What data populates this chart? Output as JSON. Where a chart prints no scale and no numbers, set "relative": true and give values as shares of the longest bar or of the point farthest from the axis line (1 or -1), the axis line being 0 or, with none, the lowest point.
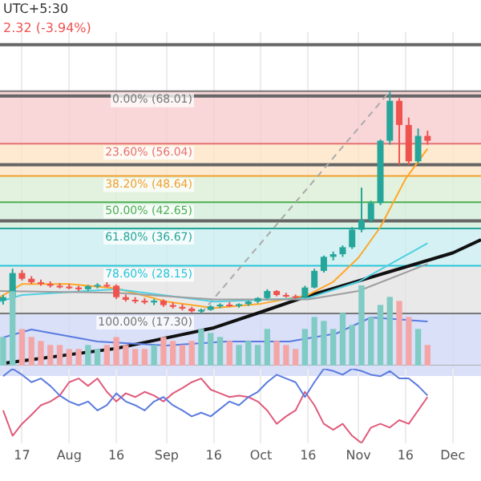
{
  "chart_data": [
    {
      "type": "candlestick",
      "annotations": [
        "UTC+5:30",
        "2.32 (-3.94%)"
      ],
      "legend": false,
      "grid": "x",
      "tick_labels": false,
      "xlim": [
        "--07-10",
        "--12-10"
      ],
      "ylim": [
        1,
        81.5
      ],
      "xticks": [
        {
          "value": "--07-17",
          "label": null
        },
        {
          "value": "--08-01",
          "label": null
        },
        {
          "value": "--08-16",
          "label": null
        },
        {
          "value": "--09-01",
          "label": null
        },
        {
          "value": "--09-16",
          "label": null
        },
        {
          "value": "--10-01",
          "label": null
        },
        {
          "value": "--10-16",
          "label": null
        },
        {
          "value": "--11-01",
          "label": null
        },
        {
          "value": "--11-16",
          "label": null
        },
        {
          "value": "--12-01",
          "label": null
        }
      ],
      "x": [
        "--07-11",
        "--07-14",
        "--07-17",
        "--07-20",
        "--07-23",
        "--07-26",
        "--07-29",
        "--08-01",
        "--08-04",
        "--08-07",
        "--08-10",
        "--08-13",
        "--08-16",
        "--08-19",
        "--08-22",
        "--08-25",
        "--08-28",
        "--08-31",
        "--09-03",
        "--09-06",
        "--09-09",
        "--09-12",
        "--09-15",
        "--09-18",
        "--09-21",
        "--09-24",
        "--09-27",
        "--09-30",
        "--10-03",
        "--10-06",
        "--10-09",
        "--10-12",
        "--10-15",
        "--10-18",
        "--10-21",
        "--10-24",
        "--10-27",
        "--10-30",
        "--11-02",
        "--11-05",
        "--11-08",
        "--11-11",
        "--11-14",
        "--11-17",
        "--11-20",
        "--11-23"
      ],
      "ohlc": [
        [
          20.2,
          21.5,
          19.3,
          21.0
        ],
        [
          21.0,
          27.5,
          20.5,
          26.5
        ],
        [
          26.5,
          27.2,
          24.8,
          25.2
        ],
        [
          25.2,
          25.8,
          24.0,
          24.4
        ],
        [
          24.4,
          25.0,
          23.6,
          24.0
        ],
        [
          24.0,
          24.6,
          23.2,
          23.6
        ],
        [
          23.6,
          24.2,
          23.0,
          23.4
        ],
        [
          23.4,
          24.0,
          22.8,
          23.2
        ],
        [
          23.2,
          23.6,
          22.4,
          22.8
        ],
        [
          22.8,
          23.8,
          22.5,
          23.5
        ],
        [
          23.5,
          24.2,
          23.0,
          23.8
        ],
        [
          23.8,
          24.4,
          23.2,
          23.6
        ],
        [
          23.6,
          23.9,
          20.6,
          21.0
        ],
        [
          21.0,
          21.6,
          20.0,
          20.4
        ],
        [
          20.4,
          21.0,
          19.6,
          20.2
        ],
        [
          20.2,
          20.8,
          19.4,
          19.8
        ],
        [
          19.8,
          20.6,
          19.2,
          20.2
        ],
        [
          20.2,
          20.5,
          18.8,
          19.2
        ],
        [
          19.2,
          19.8,
          18.4,
          18.8
        ],
        [
          18.8,
          19.4,
          18.0,
          18.4
        ],
        [
          18.4,
          18.8,
          17.5,
          17.8
        ],
        [
          17.8,
          18.4,
          17.3,
          18.1
        ],
        [
          18.1,
          19.2,
          17.9,
          18.9
        ],
        [
          18.9,
          19.6,
          18.5,
          19.3
        ],
        [
          19.3,
          19.9,
          18.8,
          19.0
        ],
        [
          19.0,
          19.6,
          18.6,
          19.4
        ],
        [
          19.4,
          20.2,
          19.0,
          20.0
        ],
        [
          20.0,
          21.0,
          19.6,
          20.8
        ],
        [
          20.8,
          22.8,
          20.5,
          22.4
        ],
        [
          22.4,
          22.6,
          21.2,
          21.5
        ],
        [
          21.5,
          22.0,
          20.9,
          21.2
        ],
        [
          21.2,
          21.6,
          20.6,
          21.0
        ],
        [
          21.0,
          23.6,
          20.8,
          23.2
        ],
        [
          23.2,
          27.5,
          23.0,
          27.0
        ],
        [
          27.0,
          30.5,
          26.6,
          30.2
        ],
        [
          30.2,
          31.4,
          29.4,
          30.8
        ],
        [
          30.8,
          32.8,
          30.2,
          32.4
        ],
        [
          32.4,
          37.0,
          32.0,
          36.4
        ],
        [
          36.4,
          46.0,
          35.8,
          38.6
        ],
        [
          38.6,
          43.0,
          38.0,
          42.5
        ],
        [
          42.5,
          57.0,
          42.0,
          56.7
        ],
        [
          56.7,
          68.01,
          55.8,
          65.8
        ],
        [
          65.8,
          66.4,
          51.2,
          60.3
        ],
        [
          60.3,
          62.0,
          51.2,
          52.0
        ],
        [
          52.0,
          59.5,
          51.6,
          57.8
        ],
        [
          57.8,
          59.0,
          55.8,
          56.7
        ]
      ],
      "series": [
        {
          "type": "line",
          "color": "#9e9e9e",
          "x": [
            "--07-10",
            "--08-16",
            "--09-16",
            "--10-16",
            "--11-01",
            "--11-23"
          ],
          "values": [
            22.4,
            22.0,
            20.5,
            20.5,
            22.4,
            28.6
          ]
        },
        {
          "type": "line",
          "color": "#4dd0e1",
          "x": [
            "--07-10",
            "--07-17",
            "--08-16",
            "--09-16",
            "--10-16",
            "--11-01",
            "--11-23"
          ],
          "values": [
            20.0,
            21.5,
            22.8,
            20.0,
            20.8,
            24.5,
            33.3
          ]
        },
        {
          "type": "line",
          "color": "#ffa726",
          "x": [
            "--07-10",
            "--07-17",
            "--08-01",
            "--08-16",
            "--09-01",
            "--09-16",
            "--10-01",
            "--10-16",
            "--10-24",
            "--11-01",
            "--11-08",
            "--11-16",
            "--11-23"
          ],
          "values": [
            21.0,
            24.0,
            24.0,
            23.0,
            20.0,
            18.5,
            19.5,
            21.5,
            24.5,
            30.0,
            37.0,
            48.0,
            54.9
          ]
        },
        {
          "type": "line",
          "color": "#111111",
          "x": [
            "--07-12",
            "--08-16",
            "--09-16",
            "--10-01",
            "--10-16",
            "--11-16",
            "--12-01",
            "--12-10"
          ],
          "values": [
            6.0,
            9.3,
            14.0,
            17.6,
            21.3,
            27.9,
            31.1,
            34.1
          ]
        },
        {
          "type": "line",
          "color": "#aaaaaa",
          "line_style": "dashed",
          "x": [
            "--09-12",
            "--11-11"
          ],
          "values": [
            17.3,
            68.0
          ]
        }
      ],
      "bands": [
        {
          "axis": "y",
          "from": 56.04,
          "to": 68.01,
          "color": "#f8cdd0"
        },
        {
          "axis": "y",
          "from": 48.64,
          "to": 56.04,
          "color": "#fde5c4"
        },
        {
          "axis": "y",
          "from": 42.65,
          "to": 48.64,
          "color": "#dcefd6"
        },
        {
          "axis": "y",
          "from": 36.67,
          "to": 42.65,
          "color": "#d3eddb"
        },
        {
          "axis": "y",
          "from": 28.15,
          "to": 36.67,
          "color": "#caedf0"
        },
        {
          "axis": "y",
          "from": 17.3,
          "to": 28.15,
          "color": "#e4e4e4"
        },
        {
          "axis": "y",
          "from": 3,
          "to": 17.3,
          "color": "#d0d8f6"
        }
      ],
      "ref_lines": [
        {
          "axis": "y",
          "value": 78.6,
          "color": "#666666"
        },
        {
          "axis": "y",
          "value": 66.9,
          "color": "#666666"
        },
        {
          "axis": "y",
          "value": 51.2,
          "color": "#666666"
        },
        {
          "axis": "y",
          "value": 38.4,
          "color": "#666666"
        },
        {
          "axis": "y",
          "value": 68.01,
          "label": "0.00% (68.01)",
          "color": "#787878"
        },
        {
          "axis": "y",
          "value": 56.04,
          "label": "23.60% (56.04)",
          "color": "#e57373"
        },
        {
          "axis": "y",
          "value": 48.64,
          "label": "38.20% (48.64)",
          "color": "#f0a030"
        },
        {
          "axis": "y",
          "value": 42.65,
          "label": "50.00% (42.65)",
          "color": "#4caf50"
        },
        {
          "axis": "y",
          "value": 36.67,
          "label": "61.80% (36.67)",
          "color": "#26a69a"
        },
        {
          "axis": "y",
          "value": 28.15,
          "label": "78.60% (28.15)",
          "color": "#26c6da"
        },
        {
          "axis": "y",
          "value": 17.3,
          "label": "100.00% (17.30)",
          "color": "#787878"
        }
      ]
    },
    {
      "type": "bar",
      "relative": true,
      "legend": false,
      "tick_labels": false,
      "xlim": [
        "--07-10",
        "--12-10"
      ],
      "x": [
        "--07-11",
        "--07-14",
        "--07-17",
        "--07-20",
        "--07-23",
        "--07-26",
        "--07-29",
        "--08-01",
        "--08-04",
        "--08-07",
        "--08-10",
        "--08-13",
        "--08-16",
        "--08-19",
        "--08-22",
        "--08-25",
        "--08-28",
        "--08-31",
        "--09-03",
        "--09-06",
        "--09-09",
        "--09-12",
        "--09-15",
        "--09-18",
        "--09-21",
        "--09-24",
        "--09-27",
        "--09-30",
        "--10-03",
        "--10-06",
        "--10-09",
        "--10-12",
        "--10-15",
        "--10-18",
        "--10-21",
        "--10-24",
        "--10-27",
        "--10-30",
        "--11-02",
        "--11-05",
        "--11-08",
        "--11-11",
        "--11-14",
        "--11-17",
        "--11-20",
        "--11-23"
      ],
      "values": [
        0.35,
        0.92,
        0.45,
        0.35,
        0.3,
        0.25,
        0.25,
        0.2,
        0.2,
        0.25,
        0.2,
        0.25,
        0.35,
        0.25,
        0.2,
        0.2,
        0.25,
        0.35,
        0.3,
        0.25,
        0.3,
        0.45,
        0.4,
        0.35,
        0.3,
        0.25,
        0.3,
        0.25,
        0.45,
        0.3,
        0.25,
        0.2,
        0.45,
        0.6,
        0.55,
        0.45,
        0.65,
        0.5,
        1,
        0.6,
        0.75,
        0.85,
        0.8,
        0.6,
        0.45,
        0.25
      ],
      "colors": [
        "#80cbc4",
        "#80cbc4",
        "#f4a6a6",
        "#f4a6a6",
        "#f4a6a6",
        "#f4a6a6",
        "#f4a6a6",
        "#f4a6a6",
        "#f4a6a6",
        "#80cbc4",
        "#80cbc4",
        "#f4a6a6",
        "#f4a6a6",
        "#f4a6a6",
        "#f4a6a6",
        "#f4a6a6",
        "#80cbc4",
        "#f4a6a6",
        "#f4a6a6",
        "#f4a6a6",
        "#f4a6a6",
        "#80cbc4",
        "#80cbc4",
        "#80cbc4",
        "#f4a6a6",
        "#80cbc4",
        "#80cbc4",
        "#80cbc4",
        "#80cbc4",
        "#f4a6a6",
        "#f4a6a6",
        "#f4a6a6",
        "#80cbc4",
        "#80cbc4",
        "#80cbc4",
        "#80cbc4",
        "#80cbc4",
        "#80cbc4",
        "#80cbc4",
        "#80cbc4",
        "#80cbc4",
        "#80cbc4",
        "#f4a6a6",
        "#f4a6a6",
        "#80cbc4",
        "#f4a6a6"
      ],
      "series": [
        {
          "type": "line",
          "color": "#5b7be0",
          "x": [
            "--07-11",
            "--07-20",
            "--08-10",
            "--09-01",
            "--09-20",
            "--10-10",
            "--10-25",
            "--11-05",
            "--11-23"
          ],
          "values": [
            0.35,
            0.45,
            0.3,
            0.25,
            0.3,
            0.3,
            0.4,
            0.6,
            0.55
          ]
        }
      ]
    },
    {
      "type": "line",
      "relative": true,
      "legend": false,
      "grid": "x",
      "tick_labels": "x",
      "xlim": [
        "--07-10",
        "--12-10"
      ],
      "xticks": [
        {
          "value": "--07-17",
          "label": "17"
        },
        {
          "value": "--08-01",
          "label": "Aug"
        },
        {
          "value": "--08-16",
          "label": "16"
        },
        {
          "value": "--09-01",
          "label": "Sep"
        },
        {
          "value": "--09-16",
          "label": "16"
        },
        {
          "value": "--10-01",
          "label": "Oct"
        },
        {
          "value": "--10-16",
          "label": "16"
        },
        {
          "value": "--11-01",
          "label": "Nov"
        },
        {
          "value": "--11-16",
          "label": "16"
        },
        {
          "value": "--12-01",
          "label": "Dec"
        }
      ],
      "x": [
        "--07-11",
        "--07-14",
        "--07-17",
        "--07-20",
        "--07-23",
        "--07-26",
        "--07-29",
        "--08-01",
        "--08-04",
        "--08-07",
        "--08-10",
        "--08-13",
        "--08-16",
        "--08-19",
        "--08-22",
        "--08-25",
        "--08-28",
        "--08-31",
        "--09-03",
        "--09-06",
        "--09-09",
        "--09-12",
        "--09-15",
        "--09-18",
        "--09-21",
        "--09-24",
        "--09-27",
        "--09-30",
        "--10-03",
        "--10-06",
        "--10-09",
        "--10-12",
        "--10-15",
        "--10-18",
        "--10-21",
        "--10-24",
        "--10-27",
        "--10-30",
        "--11-02",
        "--11-05",
        "--11-08",
        "--11-11",
        "--11-14",
        "--11-17",
        "--11-20",
        "--11-23"
      ],
      "series": [
        {
          "color": "#5b7be0",
          "values": [
            0.9,
            1,
            0.92,
            0.82,
            0.87,
            0.77,
            0.64,
            0.56,
            0.51,
            0.56,
            0.44,
            0.51,
            0.67,
            0.56,
            0.51,
            0.44,
            0.56,
            0.62,
            0.51,
            0.44,
            0.36,
            0.41,
            0.36,
            0.46,
            0.56,
            0.51,
            0.62,
            0.69,
            0.82,
            0.92,
            0.87,
            0.82,
            0.62,
            0.82,
            1,
            0.97,
            0.92,
            1,
            0.97,
            0.92,
            0.9,
            0.97,
            0.87,
            0.87,
            0.77,
            0.64
          ]
        },
        {
          "color": "#e05b7b",
          "values": [
            0.44,
            0.1,
            0.26,
            0.38,
            0.51,
            0.56,
            0.64,
            0.82,
            0.87,
            0.77,
            0.87,
            0.69,
            0.56,
            0.67,
            0.62,
            0.69,
            0.64,
            0.56,
            0.67,
            0.74,
            0.82,
            0.87,
            0.72,
            0.67,
            0.62,
            0.64,
            0.62,
            0.56,
            0.44,
            0.26,
            0.36,
            0.44,
            0.69,
            0.51,
            0.26,
            0.18,
            0.26,
            0.1,
            0,
            0.21,
            0.26,
            0.21,
            0.31,
            0.26,
            0.44,
            0.62
          ]
        }
      ]
    }
  ]
}
